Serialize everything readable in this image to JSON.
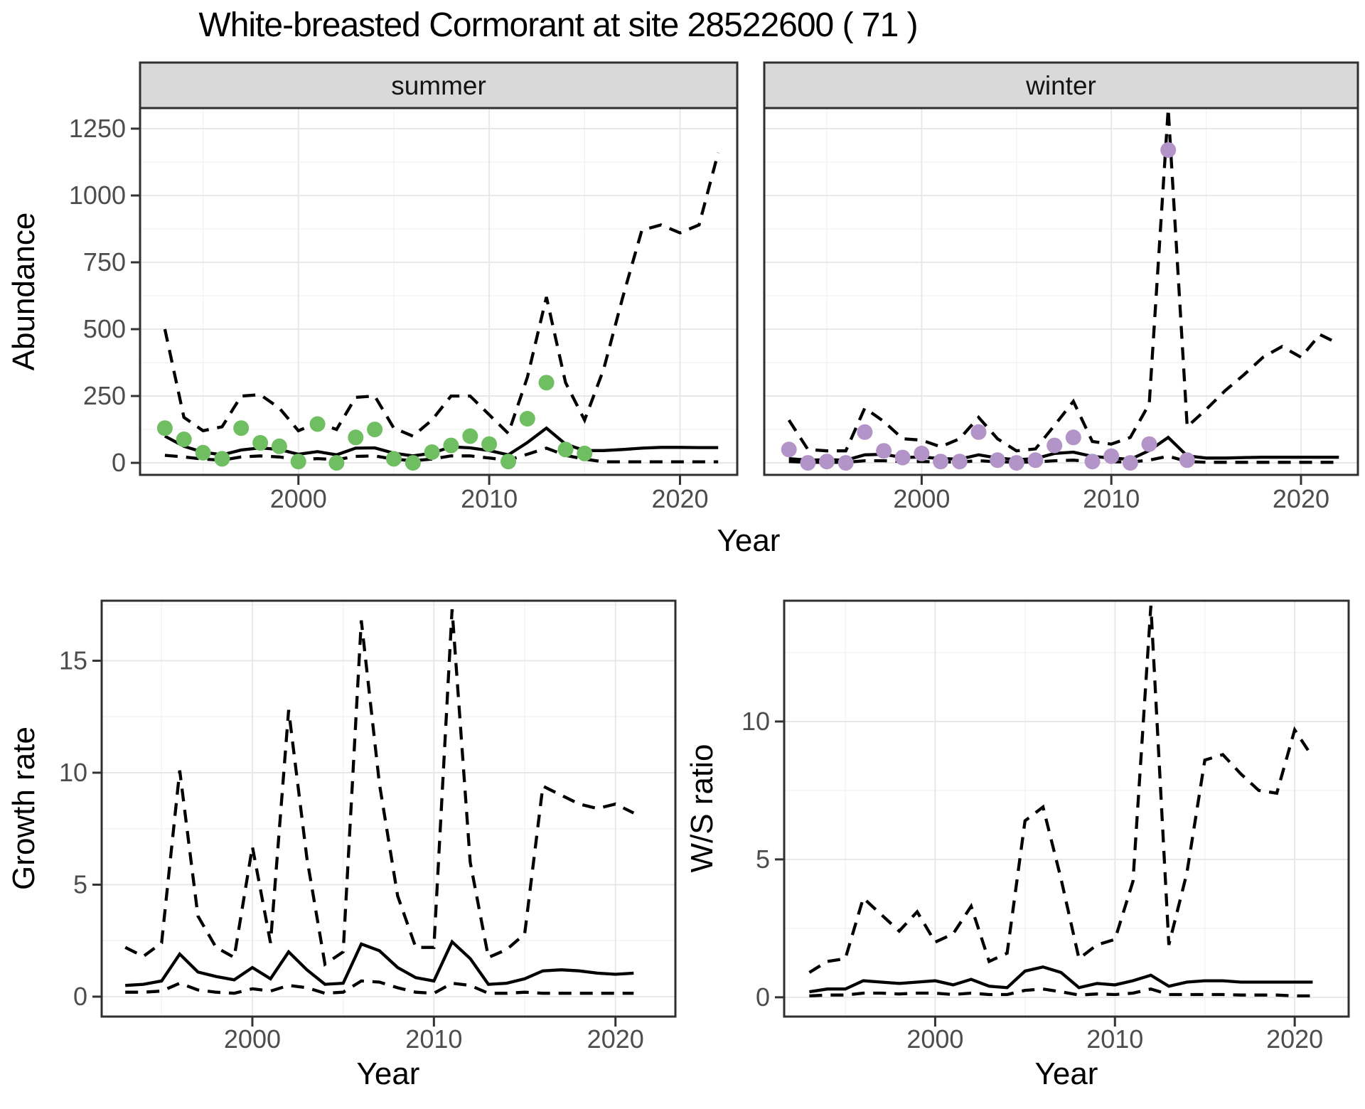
{
  "title": "White-breasted Cormorant at site 28522600 ( 71 )",
  "colors": {
    "summer_points": "#6FBE62",
    "winter_points": "#B294C8",
    "line": "#000000",
    "strip_bg": "#D9D9D9",
    "strip_text": "#141414",
    "grid_major": "#E6E6E6",
    "grid_minor": "#F2F2F2",
    "panel_border": "#2F2F2F",
    "axis_text": "#4D4D4D",
    "background": "#FFFFFF"
  },
  "chart_data": [
    {
      "id": "abundance-summer",
      "type": "line",
      "facet": "summer",
      "ylabel": "Abundance",
      "xlabel": "Year",
      "x_ticks": [
        2000,
        2010,
        2020
      ],
      "y_ticks": [
        0,
        250,
        500,
        750,
        1000,
        1250
      ],
      "xlim": [
        1991.7,
        2023.0
      ],
      "ylim": [
        -45,
        1327
      ],
      "grid": true,
      "years": [
        1993,
        1994,
        1995,
        1996,
        1997,
        1998,
        1999,
        2000,
        2001,
        2002,
        2003,
        2004,
        2005,
        2006,
        2007,
        2008,
        2009,
        2010,
        2011,
        2012,
        2013,
        2014,
        2015,
        2016,
        2017,
        2018,
        2019,
        2020,
        2021,
        2022
      ],
      "series": [
        {
          "name": "median",
          "style": "solid",
          "values": [
            100,
            62,
            40,
            30,
            48,
            56,
            50,
            32,
            42,
            30,
            55,
            56,
            36,
            26,
            36,
            60,
            56,
            46,
            30,
            76,
            130,
            70,
            46,
            46,
            50,
            55,
            58,
            58,
            57,
            57
          ]
        },
        {
          "name": "upper-credible",
          "style": "dashed",
          "values": [
            500,
            170,
            120,
            135,
            250,
            255,
            205,
            120,
            150,
            125,
            245,
            250,
            130,
            100,
            160,
            250,
            250,
            180,
            110,
            320,
            620,
            300,
            160,
            350,
            620,
            870,
            890,
            860,
            890,
            1160
          ]
        },
        {
          "name": "lower-credible",
          "style": "dashed",
          "values": [
            28,
            22,
            14,
            10,
            22,
            26,
            22,
            12,
            16,
            12,
            24,
            26,
            14,
            8,
            14,
            26,
            26,
            18,
            10,
            32,
            55,
            28,
            14,
            4,
            4,
            4,
            4,
            4,
            4,
            4
          ]
        }
      ],
      "obs_years": [
        1993,
        1994,
        1995,
        1996,
        1997,
        1998,
        1999,
        2000,
        2001,
        2002,
        2003,
        2004,
        2005,
        2006,
        2007,
        2008,
        2009,
        2010,
        2011,
        2012,
        2013,
        2014,
        2015
      ],
      "obs_values": [
        130,
        88,
        38,
        15,
        130,
        75,
        62,
        5,
        145,
        0,
        95,
        125,
        15,
        0,
        40,
        65,
        100,
        70,
        5,
        165,
        300,
        50,
        35
      ],
      "point_color": "#6FBE62"
    },
    {
      "id": "abundance-winter",
      "type": "line",
      "facet": "winter",
      "ylabel": "",
      "xlabel": "Year",
      "x_ticks": [
        2000,
        2010,
        2020
      ],
      "y_ticks": [
        0,
        250,
        500,
        750,
        1000,
        1250
      ],
      "xlim": [
        1991.7,
        2023.0
      ],
      "ylim": [
        -45,
        1327
      ],
      "grid": true,
      "years": [
        1993,
        1994,
        1995,
        1996,
        1997,
        1998,
        1999,
        2000,
        2001,
        2002,
        2003,
        2004,
        2005,
        2006,
        2007,
        2008,
        2009,
        2010,
        2011,
        2012,
        2013,
        2014,
        2015,
        2016,
        2017,
        2018,
        2019,
        2020,
        2021,
        2022
      ],
      "series": [
        {
          "name": "median",
          "style": "solid",
          "values": [
            16,
            10,
            12,
            10,
            30,
            32,
            20,
            22,
            16,
            14,
            30,
            18,
            12,
            16,
            35,
            40,
            24,
            18,
            13,
            46,
            95,
            26,
            18,
            18,
            20,
            21,
            21,
            21,
            21,
            21
          ]
        },
        {
          "name": "upper-credible",
          "style": "dashed",
          "values": [
            160,
            50,
            45,
            45,
            205,
            155,
            90,
            85,
            60,
            90,
            170,
            90,
            45,
            52,
            140,
            230,
            80,
            70,
            95,
            220,
            1325,
            135,
            200,
            270,
            330,
            395,
            435,
            395,
            480,
            445
          ]
        },
        {
          "name": "lower-credible",
          "style": "dashed",
          "values": [
            5,
            2,
            2,
            2,
            8,
            8,
            5,
            5,
            3,
            3,
            8,
            4,
            2,
            3,
            8,
            10,
            5,
            4,
            3,
            10,
            25,
            5,
            2,
            2,
            2,
            2,
            2,
            2,
            2,
            2
          ]
        }
      ],
      "obs_years": [
        1993,
        1994,
        1995,
        1996,
        1997,
        1998,
        1999,
        2000,
        2001,
        2002,
        2003,
        2004,
        2005,
        2006,
        2007,
        2008,
        2009,
        2010,
        2011,
        2012,
        2013,
        2014
      ],
      "obs_values": [
        50,
        0,
        5,
        0,
        115,
        45,
        20,
        35,
        5,
        5,
        115,
        10,
        0,
        10,
        65,
        95,
        5,
        25,
        0,
        70,
        1170,
        10
      ],
      "point_color": "#B294C8"
    },
    {
      "id": "growth-rate",
      "type": "line",
      "facet": "",
      "ylabel": "Growth rate",
      "xlabel": "Year",
      "x_ticks": [
        2000,
        2010,
        2020
      ],
      "y_ticks": [
        0,
        5,
        10,
        15
      ],
      "xlim": [
        1991.7,
        2023.3
      ],
      "ylim": [
        -0.89,
        17.68
      ],
      "grid": true,
      "years": [
        1993,
        1994,
        1995,
        1996,
        1997,
        1998,
        1999,
        2000,
        2001,
        2002,
        2003,
        2004,
        2005,
        2006,
        2007,
        2008,
        2009,
        2010,
        2011,
        2012,
        2013,
        2014,
        2015,
        2016,
        2017,
        2018,
        2019,
        2020,
        2021
      ],
      "series": [
        {
          "name": "median",
          "style": "solid",
          "values": [
            0.5,
            0.55,
            0.7,
            1.9,
            1.1,
            0.9,
            0.75,
            1.3,
            0.8,
            2.0,
            1.2,
            0.55,
            0.6,
            2.35,
            2.05,
            1.3,
            0.85,
            0.7,
            2.45,
            1.7,
            0.55,
            0.6,
            0.8,
            1.15,
            1.2,
            1.15,
            1.05,
            1.0,
            1.05
          ]
        },
        {
          "name": "upper-credible",
          "style": "dashed",
          "values": [
            2.2,
            1.8,
            2.4,
            10.1,
            3.6,
            2.2,
            1.75,
            6.7,
            2.4,
            12.8,
            6.2,
            1.45,
            2.0,
            16.8,
            9.5,
            4.5,
            2.2,
            2.2,
            17.3,
            6.0,
            1.75,
            2.1,
            2.8,
            9.4,
            9.0,
            8.6,
            8.4,
            8.6,
            8.2
          ]
        },
        {
          "name": "lower-credible",
          "style": "dashed",
          "values": [
            0.2,
            0.2,
            0.25,
            0.6,
            0.3,
            0.2,
            0.15,
            0.35,
            0.25,
            0.5,
            0.4,
            0.15,
            0.2,
            0.7,
            0.65,
            0.4,
            0.2,
            0.15,
            0.6,
            0.5,
            0.15,
            0.15,
            0.2,
            0.15,
            0.15,
            0.15,
            0.15,
            0.15,
            0.15
          ]
        }
      ],
      "obs_years": [],
      "obs_values": [],
      "point_color": ""
    },
    {
      "id": "ws-ratio",
      "type": "line",
      "facet": "",
      "ylabel": "W/S ratio",
      "xlabel": "Year",
      "x_ticks": [
        2000,
        2010,
        2020
      ],
      "y_ticks": [
        0,
        5,
        10
      ],
      "xlim": [
        1991.6,
        2023.0
      ],
      "ylim": [
        -0.7,
        14.38
      ],
      "grid": true,
      "years": [
        1993,
        1994,
        1995,
        1996,
        1997,
        1998,
        1999,
        2000,
        2001,
        2002,
        2003,
        2004,
        2005,
        2006,
        2007,
        2008,
        2009,
        2010,
        2011,
        2012,
        2013,
        2014,
        2015,
        2016,
        2017,
        2018,
        2019,
        2020,
        2021
      ],
      "series": [
        {
          "name": "median",
          "style": "solid",
          "values": [
            0.2,
            0.3,
            0.3,
            0.6,
            0.55,
            0.5,
            0.55,
            0.6,
            0.45,
            0.65,
            0.4,
            0.35,
            0.95,
            1.1,
            0.9,
            0.35,
            0.5,
            0.45,
            0.6,
            0.8,
            0.4,
            0.55,
            0.6,
            0.6,
            0.55,
            0.55,
            0.55,
            0.55,
            0.55
          ]
        },
        {
          "name": "upper-credible",
          "style": "dashed",
          "values": [
            0.9,
            1.3,
            1.4,
            3.6,
            3.0,
            2.4,
            3.1,
            2.0,
            2.3,
            3.3,
            1.3,
            1.6,
            6.4,
            6.9,
            4.3,
            1.4,
            1.9,
            2.1,
            4.2,
            14.2,
            1.9,
            4.5,
            8.6,
            8.8,
            8.1,
            7.5,
            7.4,
            9.7,
            8.7
          ]
        },
        {
          "name": "lower-credible",
          "style": "dashed",
          "values": [
            0.05,
            0.08,
            0.08,
            0.15,
            0.15,
            0.12,
            0.15,
            0.15,
            0.1,
            0.15,
            0.1,
            0.1,
            0.25,
            0.3,
            0.2,
            0.08,
            0.12,
            0.1,
            0.15,
            0.3,
            0.1,
            0.1,
            0.1,
            0.1,
            0.08,
            0.08,
            0.08,
            0.05,
            0.05
          ]
        }
      ],
      "obs_years": [],
      "obs_values": [],
      "point_color": ""
    }
  ]
}
